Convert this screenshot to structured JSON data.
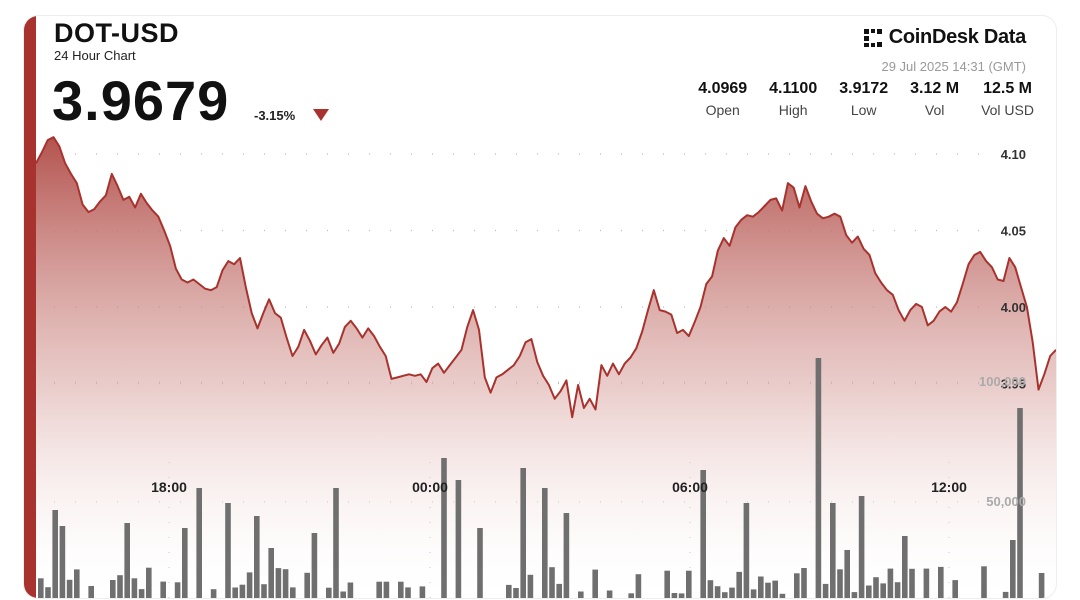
{
  "header": {
    "pair": "DOT-USD",
    "subtitle": "24 Hour Chart",
    "price": "3.9679",
    "change": "-3.15%"
  },
  "brand": {
    "name": "CoinDesk Data",
    "timestamp": "29 Jul 2025 14:31 (GMT)",
    "icon": "coindesk-logo-icon"
  },
  "stats": [
    {
      "value": "4.0969",
      "label": "Open"
    },
    {
      "value": "4.1100",
      "label": "High"
    },
    {
      "value": "3.9172",
      "label": "Low"
    },
    {
      "value": "3.12 M",
      "label": "Vol"
    },
    {
      "value": "12.5 M",
      "label": "Vol USD"
    }
  ],
  "colors": {
    "accent": "#a8322d",
    "line": "#a8322d",
    "fill_top": "#b8524d",
    "volume": "#6f6f6f"
  },
  "chart_data": {
    "type": "area",
    "x_ticks": [
      "18:00",
      "00:00",
      "06:00",
      "12:00"
    ],
    "y_ticks": [
      "4.10",
      "4.05",
      "4.00",
      "3.95"
    ],
    "volume_ticks": [
      "100,000",
      "50,000"
    ],
    "ylim": [
      3.9,
      4.12
    ],
    "volume_max": 140000,
    "grid": true,
    "price": [
      4.094,
      4.101,
      4.109,
      4.111,
      4.105,
      4.094,
      4.087,
      4.081,
      4.067,
      4.062,
      4.064,
      4.069,
      4.073,
      4.087,
      4.079,
      4.07,
      4.072,
      4.065,
      4.074,
      4.068,
      4.063,
      4.059,
      4.05,
      4.04,
      4.025,
      4.018,
      4.016,
      4.018,
      4.015,
      4.012,
      4.011,
      4.013,
      4.024,
      4.03,
      4.028,
      4.032,
      4.013,
      3.996,
      3.986,
      3.996,
      4.005,
      3.996,
      3.993,
      3.98,
      3.968,
      3.974,
      3.985,
      3.978,
      3.969,
      3.975,
      3.98,
      3.97,
      3.976,
      3.987,
      3.991,
      3.986,
      3.98,
      3.986,
      3.981,
      3.974,
      3.968,
      3.953,
      3.954,
      3.955,
      3.956,
      3.955,
      3.956,
      3.951,
      3.96,
      3.963,
      3.957,
      3.962,
      3.967,
      3.972,
      3.987,
      3.998,
      3.985,
      3.954,
      3.944,
      3.954,
      3.956,
      3.959,
      3.962,
      3.968,
      3.977,
      3.979,
      3.964,
      3.955,
      3.949,
      3.94,
      3.945,
      3.952,
      3.928,
      3.949,
      3.934,
      3.94,
      3.933,
      3.962,
      3.955,
      3.963,
      3.956,
      3.963,
      3.967,
      3.973,
      3.984,
      3.998,
      4.011,
      3.998,
      3.997,
      3.995,
      3.983,
      3.985,
      3.981,
      3.99,
      4.0,
      4.015,
      4.02,
      4.037,
      4.045,
      4.04,
      4.052,
      4.057,
      4.06,
      4.059,
      4.062,
      4.066,
      4.07,
      4.071,
      4.063,
      4.081,
      4.078,
      4.065,
      4.079,
      4.069,
      4.061,
      4.058,
      4.059,
      4.061,
      4.059,
      4.047,
      4.042,
      4.046,
      4.038,
      4.034,
      4.022,
      4.016,
      4.011,
      4.008,
      3.998,
      3.991,
      3.998,
      4.002,
      4.0,
      3.988,
      3.991,
      3.997,
      4.0,
      3.997,
      4.003,
      4.015,
      4.028,
      4.034,
      4.036,
      4.03,
      4.026,
      4.018,
      4.017,
      4.032,
      4.026,
      4.013,
      4.0,
      3.977,
      3.946,
      3.956,
      3.968,
      3.972
    ]
  }
}
